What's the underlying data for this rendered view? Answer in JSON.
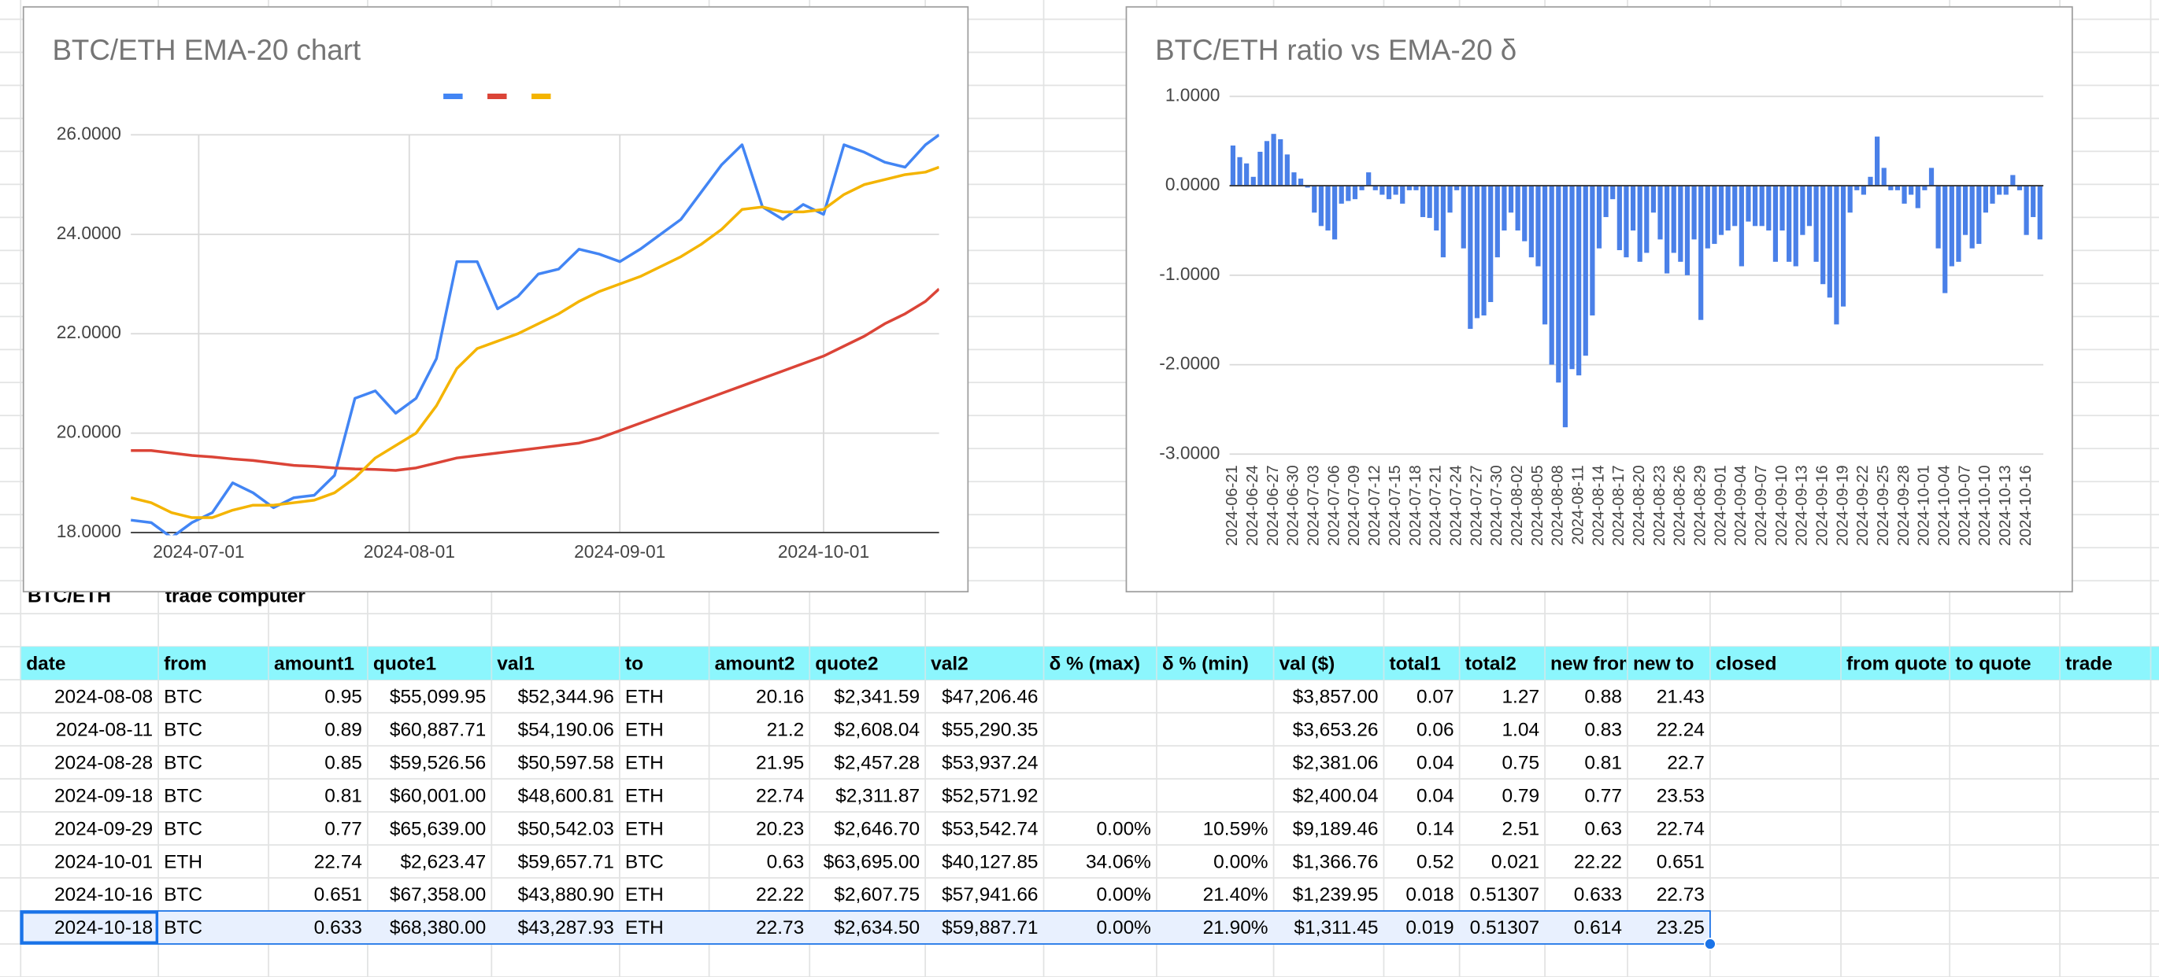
{
  "chart_data": [
    {
      "type": "line",
      "title": "BTC/ETH EMA-20 chart",
      "legend": "top",
      "grid": true,
      "x": [
        "2024-06-21",
        "2024-06-24",
        "2024-06-27",
        "2024-06-30",
        "2024-07-03",
        "2024-07-06",
        "2024-07-09",
        "2024-07-12",
        "2024-07-15",
        "2024-07-18",
        "2024-07-21",
        "2024-07-24",
        "2024-07-27",
        "2024-07-30",
        "2024-08-02",
        "2024-08-05",
        "2024-08-08",
        "2024-08-11",
        "2024-08-14",
        "2024-08-17",
        "2024-08-20",
        "2024-08-23",
        "2024-08-26",
        "2024-08-29",
        "2024-09-01",
        "2024-09-04",
        "2024-09-07",
        "2024-09-10",
        "2024-09-13",
        "2024-09-16",
        "2024-09-19",
        "2024-09-22",
        "2024-09-25",
        "2024-09-28",
        "2024-10-01",
        "2024-10-04",
        "2024-10-07",
        "2024-10-10",
        "2024-10-13",
        "2024-10-16",
        "2024-10-18"
      ],
      "xlim": [
        "2024-06-21",
        "2024-10-18"
      ],
      "xticks": [
        "2024-07-01",
        "2024-08-01",
        "2024-09-01",
        "2024-10-01"
      ],
      "ylim": [
        18,
        26
      ],
      "yticks": [
        {
          "value": 18,
          "label": "18.0000"
        },
        {
          "value": 20,
          "label": "20.0000"
        },
        {
          "value": 22,
          "label": "22.0000"
        },
        {
          "value": 24,
          "label": "24.0000"
        },
        {
          "value": 26,
          "label": "26.0000"
        }
      ],
      "series": [
        {
          "color": "#4285f4",
          "values": [
            18.25,
            18.2,
            17.9,
            18.2,
            18.4,
            19.0,
            18.8,
            18.5,
            18.7,
            18.75,
            19.15,
            20.7,
            20.85,
            20.4,
            20.7,
            21.5,
            23.45,
            23.45,
            22.5,
            22.75,
            23.2,
            23.3,
            23.7,
            23.6,
            23.45,
            23.7,
            24.0,
            24.3,
            24.85,
            25.4,
            25.8,
            24.55,
            24.3,
            24.6,
            24.4,
            25.8,
            25.65,
            25.45,
            25.35,
            25.8,
            26.0
          ]
        },
        {
          "color": "#db4437",
          "values": [
            19.65,
            19.65,
            19.6,
            19.55,
            19.52,
            19.48,
            19.45,
            19.4,
            19.35,
            19.33,
            19.3,
            19.28,
            19.27,
            19.25,
            19.3,
            19.4,
            19.5,
            19.55,
            19.6,
            19.65,
            19.7,
            19.75,
            19.8,
            19.9,
            20.05,
            20.2,
            20.35,
            20.5,
            20.65,
            20.8,
            20.95,
            21.1,
            21.25,
            21.4,
            21.55,
            21.75,
            21.95,
            22.2,
            22.4,
            22.65,
            22.9
          ]
        },
        {
          "color": "#f4b400",
          "values": [
            18.7,
            18.6,
            18.4,
            18.3,
            18.3,
            18.45,
            18.55,
            18.55,
            18.6,
            18.65,
            18.8,
            19.1,
            19.5,
            19.75,
            20.0,
            20.55,
            21.3,
            21.7,
            21.85,
            22.0,
            22.2,
            22.4,
            22.65,
            22.85,
            23.0,
            23.15,
            23.35,
            23.55,
            23.8,
            24.1,
            24.5,
            24.55,
            24.45,
            24.45,
            24.5,
            24.8,
            25.0,
            25.1,
            25.2,
            25.25,
            25.35
          ]
        }
      ]
    },
    {
      "type": "bar",
      "title": "BTC/ETH ratio vs EMA-20 δ",
      "grid": true,
      "color": "#4a80e8",
      "ylim": [
        -3,
        1
      ],
      "yticks": [
        {
          "value": -3,
          "label": "-3.0000"
        },
        {
          "value": -2,
          "label": "-2.0000"
        },
        {
          "value": -1,
          "label": "-1.0000"
        },
        {
          "value": 0,
          "label": "0.0000"
        },
        {
          "value": 1,
          "label": "1.0000"
        }
      ],
      "categories": [
        "2024-06-21",
        null,
        null,
        "2024-06-24",
        null,
        null,
        "2024-06-27",
        null,
        null,
        "2024-06-30",
        null,
        null,
        "2024-07-03",
        null,
        null,
        "2024-07-06",
        null,
        null,
        "2024-07-09",
        null,
        null,
        "2024-07-12",
        null,
        null,
        "2024-07-15",
        null,
        null,
        "2024-07-18",
        null,
        null,
        "2024-07-21",
        null,
        null,
        "2024-07-24",
        null,
        null,
        "2024-07-27",
        null,
        null,
        "2024-07-30",
        null,
        null,
        "2024-08-02",
        null,
        null,
        "2024-08-05",
        null,
        null,
        "2024-08-08",
        null,
        null,
        "2024-08-11",
        null,
        null,
        "2024-08-14",
        null,
        null,
        "2024-08-17",
        null,
        null,
        "2024-08-20",
        null,
        null,
        "2024-08-23",
        null,
        null,
        "2024-08-26",
        null,
        null,
        "2024-08-29",
        null,
        null,
        "2024-09-01",
        null,
        null,
        "2024-09-04",
        null,
        null,
        "2024-09-07",
        null,
        null,
        "2024-09-10",
        null,
        null,
        "2024-09-13",
        null,
        null,
        "2024-09-16",
        null,
        null,
        "2024-09-19",
        null,
        null,
        "2024-09-22",
        null,
        null,
        "2024-09-25",
        null,
        null,
        "2024-09-28",
        null,
        null,
        "2024-10-01",
        null,
        null,
        "2024-10-04",
        null,
        null,
        "2024-10-07",
        null,
        null,
        "2024-10-10",
        null,
        null,
        "2024-10-13",
        null,
        null,
        "2024-10-16",
        null,
        null
      ],
      "values": [
        0.45,
        0.32,
        0.25,
        0.1,
        0.38,
        0.5,
        0.58,
        0.52,
        0.35,
        0.15,
        0.08,
        -0.02,
        -0.3,
        -0.45,
        -0.5,
        -0.6,
        -0.2,
        -0.17,
        -0.15,
        -0.05,
        0.15,
        -0.05,
        -0.1,
        -0.15,
        -0.1,
        -0.2,
        -0.05,
        -0.05,
        -0.35,
        -0.36,
        -0.5,
        -0.8,
        -0.3,
        -0.05,
        -0.7,
        -1.6,
        -1.48,
        -1.45,
        -1.3,
        -0.8,
        -0.5,
        -0.3,
        -0.5,
        -0.62,
        -0.8,
        -0.9,
        -1.55,
        -2.0,
        -2.2,
        -2.7,
        -2.05,
        -2.12,
        -1.9,
        -1.45,
        -0.7,
        -0.35,
        -0.15,
        -0.72,
        -0.8,
        -0.5,
        -0.85,
        -0.75,
        -0.3,
        -0.6,
        -0.98,
        -0.75,
        -0.85,
        -1.0,
        -0.6,
        -1.5,
        -0.7,
        -0.65,
        -0.55,
        -0.5,
        -0.45,
        -0.9,
        -0.4,
        -0.45,
        -0.45,
        -0.5,
        -0.85,
        -0.5,
        -0.85,
        -0.9,
        -0.55,
        -0.45,
        -0.85,
        -1.1,
        -1.25,
        -1.55,
        -1.35,
        -0.3,
        -0.05,
        -0.1,
        0.1,
        0.55,
        0.2,
        -0.05,
        -0.05,
        -0.2,
        -0.1,
        -0.25,
        -0.05,
        0.2,
        -0.7,
        -1.2,
        -0.9,
        -0.85,
        -0.55,
        -0.7,
        -0.65,
        -0.3,
        -0.2,
        -0.1,
        -0.1,
        0.12,
        -0.05,
        -0.55,
        -0.35,
        -0.6
      ]
    }
  ],
  "sheet": {
    "title": "BTC/ETH",
    "subtitle": "trade computer",
    "columns": [
      "date",
      "from",
      "amount1",
      "quote1",
      "val1",
      "to",
      "amount2",
      "quote2",
      "val2",
      "δ % (max)",
      "δ % (min)",
      "val ($)",
      "total1",
      "total2",
      "new from",
      "new to",
      "closed",
      "from quote",
      "to quote",
      "trade"
    ],
    "rows": [
      [
        "2024-08-08",
        "BTC",
        "0.95",
        "$55,099.95",
        "$52,344.96",
        "ETH",
        "20.16",
        "$2,341.59",
        "$47,206.46",
        null,
        null,
        "$3,857.00",
        "0.07",
        "1.27",
        "0.88",
        "21.43"
      ],
      [
        "2024-08-11",
        "BTC",
        "0.89",
        "$60,887.71",
        "$54,190.06",
        "ETH",
        "21.2",
        "$2,608.04",
        "$55,290.35",
        null,
        null,
        "$3,653.26",
        "0.06",
        "1.04",
        "0.83",
        "22.24"
      ],
      [
        "2024-08-28",
        "BTC",
        "0.85",
        "$59,526.56",
        "$50,597.58",
        "ETH",
        "21.95",
        "$2,457.28",
        "$53,937.24",
        null,
        null,
        "$2,381.06",
        "0.04",
        "0.75",
        "0.81",
        "22.7"
      ],
      [
        "2024-09-18",
        "BTC",
        "0.81",
        "$60,001.00",
        "$48,600.81",
        "ETH",
        "22.74",
        "$2,311.87",
        "$52,571.92",
        null,
        null,
        "$2,400.04",
        "0.04",
        "0.79",
        "0.77",
        "23.53"
      ],
      [
        "2024-09-29",
        "BTC",
        "0.77",
        "$65,639.00",
        "$50,542.03",
        "ETH",
        "20.23",
        "$2,646.70",
        "$53,542.74",
        "0.00%",
        "10.59%",
        "$9,189.46",
        "0.14",
        "2.51",
        "0.63",
        "22.74"
      ],
      [
        "2024-10-01",
        "ETH",
        "22.74",
        "$2,623.47",
        "$59,657.71",
        "BTC",
        "0.63",
        "$63,695.00",
        "$40,127.85",
        "34.06%",
        "0.00%",
        "$1,366.76",
        "0.52",
        "0.021",
        "22.22",
        "0.651"
      ],
      [
        "2024-10-16",
        "BTC",
        "0.651",
        "$67,358.00",
        "$43,880.90",
        "ETH",
        "22.22",
        "$2,607.75",
        "$57,941.66",
        "0.00%",
        "21.40%",
        "$1,239.95",
        "0.018",
        "0.51307",
        "0.633",
        "22.73"
      ],
      [
        "2024-10-18",
        "BTC",
        "0.633",
        "$68,380.00",
        "$43,287.93",
        "ETH",
        "22.73",
        "$2,634.50",
        "$59,887.71",
        "0.00%",
        "21.90%",
        "$1,311.45",
        "0.019",
        "0.51307",
        "0.614",
        "23.25"
      ]
    ]
  }
}
